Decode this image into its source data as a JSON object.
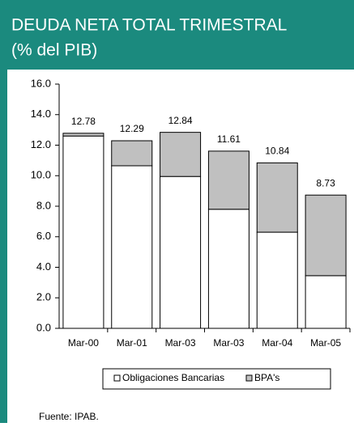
{
  "chart_data": {
    "type": "stacked_bar",
    "title": "DEUDA NETA TOTAL TRIMESTRAL",
    "subtitle": "(% del PIB)",
    "source": "Fuente: IPAB.",
    "categories": [
      "Mar-00",
      "Mar-01",
      "Mar-03",
      "Mar-03",
      "Mar-04",
      "Mar-05"
    ],
    "series": [
      {
        "name": "Obligaciones Bancarias",
        "color": "#ffffff",
        "values": [
          12.6,
          10.65,
          9.95,
          7.8,
          6.3,
          3.45
        ]
      },
      {
        "name": "BPA's",
        "color": "#c0c0c0",
        "values": [
          0.18,
          1.64,
          2.89,
          3.81,
          4.54,
          5.28
        ]
      }
    ],
    "totals": [
      12.78,
      12.29,
      12.84,
      11.61,
      10.84,
      8.73
    ],
    "ylim": [
      0,
      16
    ],
    "yticks": [
      {
        "value": 0,
        "label": "0.0"
      },
      {
        "value": 2,
        "label": "2.0"
      },
      {
        "value": 4,
        "label": "4.0"
      },
      {
        "value": 6,
        "label": "6.0"
      },
      {
        "value": 8,
        "label": "8.0"
      },
      {
        "value": 10,
        "label": "10.0"
      },
      {
        "value": 12,
        "label": "12.0"
      },
      {
        "value": 14,
        "label": "14.0"
      },
      {
        "value": 16,
        "label": "16.0"
      }
    ],
    "legend": "bottom"
  }
}
